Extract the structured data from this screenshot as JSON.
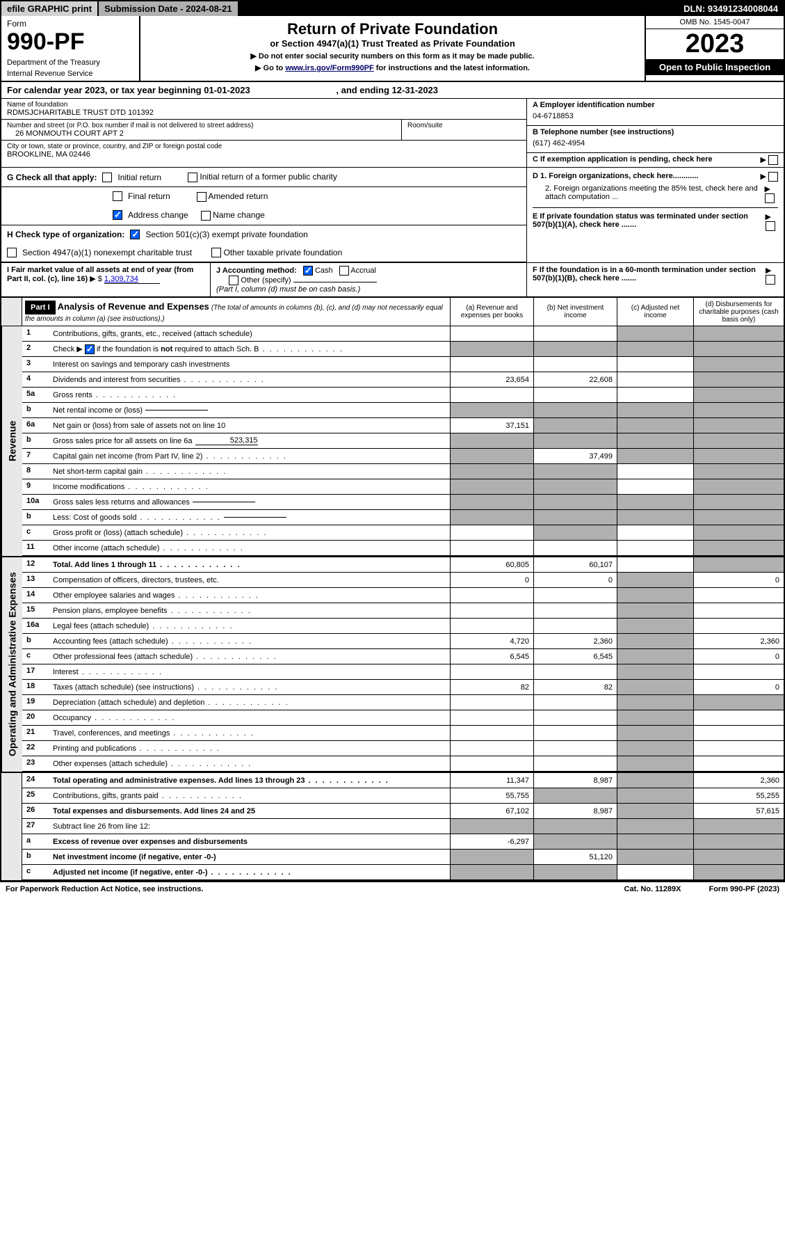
{
  "topbar": {
    "efile": "efile GRAPHIC print",
    "subdate_label": "Submission Date - 2024-08-21",
    "dln": "DLN: 93491234008044"
  },
  "header": {
    "form_label": "Form",
    "form_no": "990-PF",
    "dept": "Department of the Treasury",
    "irs": "Internal Revenue Service",
    "title": "Return of Private Foundation",
    "subtitle": "or Section 4947(a)(1) Trust Treated as Private Foundation",
    "instr1": "▶ Do not enter social security numbers on this form as it may be made public.",
    "instr2_pre": "▶ Go to ",
    "instr2_link": "www.irs.gov/Form990PF",
    "instr2_post": " for instructions and the latest information.",
    "omb": "OMB No. 1545-0047",
    "year": "2023",
    "open": "Open to Public Inspection"
  },
  "calyear": {
    "text": "For calendar year 2023, or tax year beginning 01-01-2023",
    "ending": ", and ending 12-31-2023"
  },
  "foundation": {
    "name_label": "Name of foundation",
    "name": "RDMSJCHARITABLE TRUST DTD 101392",
    "addr_label": "Number and street (or P.O. box number if mail is not delivered to street address)",
    "addr": "26 MONMOUTH COURT APT 2",
    "room_label": "Room/suite",
    "city_label": "City or town, state or province, country, and ZIP or foreign postal code",
    "city": "BROOKLINE, MA  02446",
    "ein_label": "A Employer identification number",
    "ein": "04-6718853",
    "phone_label": "B Telephone number (see instructions)",
    "phone": "(617) 462-4954",
    "c_label": "C If exemption application is pending, check here",
    "d1": "D 1. Foreign organizations, check here............",
    "d2": "2. Foreign organizations meeting the 85% test, check here and attach computation ...",
    "e_label": "E  If private foundation status was terminated under section 507(b)(1)(A), check here .......",
    "f_label": "F  If the foundation is in a 60-month termination under section 507(b)(1)(B), check here .......",
    "g_label": "G Check all that apply:",
    "g_initial": "Initial return",
    "g_initial_former": "Initial return of a former public charity",
    "g_final": "Final return",
    "g_amended": "Amended return",
    "g_address": "Address change",
    "g_name": "Name change",
    "h_label": "H Check type of organization:",
    "h_501c3": "Section 501(c)(3) exempt private foundation",
    "h_4947": "Section 4947(a)(1) nonexempt charitable trust",
    "h_other": "Other taxable private foundation",
    "i_label": "I Fair market value of all assets at end of year (from Part II, col. (c), line 16)",
    "i_value": "1,309,734",
    "j_label": "J Accounting method:",
    "j_cash": "Cash",
    "j_accrual": "Accrual",
    "j_other": "Other (specify)",
    "j_note": "(Part I, column (d) must be on cash basis.)"
  },
  "part1": {
    "label": "Part I",
    "title": "Analysis of Revenue and Expenses",
    "title_note": "(The total of amounts in columns (b), (c), and (d) may not necessarily equal the amounts in column (a) (see instructions).)",
    "col_a": "(a)   Revenue and expenses per books",
    "col_b": "(b)   Net investment income",
    "col_c": "(c)   Adjusted net income",
    "col_d": "(d)   Disbursements for charitable purposes (cash basis only)"
  },
  "sections": {
    "revenue": "Revenue",
    "expenses": "Operating and Administrative Expenses"
  },
  "lines": [
    {
      "no": "1",
      "desc": "Contributions, gifts, grants, etc., received (attach schedule)",
      "a": "",
      "b": "",
      "c": "shaded",
      "d": "shaded"
    },
    {
      "no": "2",
      "desc": "Check ▶ ☑ if the foundation is not required to attach Sch. B",
      "dots": true,
      "a": "shaded",
      "b": "shaded",
      "c": "shaded",
      "d": "shaded",
      "checkbox": true
    },
    {
      "no": "3",
      "desc": "Interest on savings and temporary cash investments",
      "a": "",
      "b": "",
      "c": "",
      "d": "shaded"
    },
    {
      "no": "4",
      "desc": "Dividends and interest from securities",
      "dots": true,
      "a": "23,654",
      "b": "22,608",
      "c": "",
      "d": "shaded"
    },
    {
      "no": "5a",
      "desc": "Gross rents",
      "dots": true,
      "a": "",
      "b": "",
      "c": "",
      "d": "shaded"
    },
    {
      "no": "b",
      "desc": "Net rental income or (loss)",
      "a": "shaded",
      "b": "shaded",
      "c": "shaded",
      "d": "shaded",
      "inline": ""
    },
    {
      "no": "6a",
      "desc": "Net gain or (loss) from sale of assets not on line 10",
      "a": "37,151",
      "b": "shaded",
      "c": "shaded",
      "d": "shaded"
    },
    {
      "no": "b",
      "desc": "Gross sales price for all assets on line 6a",
      "a": "shaded",
      "b": "shaded",
      "c": "shaded",
      "d": "shaded",
      "inline": "523,315"
    },
    {
      "no": "7",
      "desc": "Capital gain net income (from Part IV, line 2)",
      "dots": true,
      "a": "shaded",
      "b": "37,499",
      "c": "shaded",
      "d": "shaded"
    },
    {
      "no": "8",
      "desc": "Net short-term capital gain",
      "dots": true,
      "a": "shaded",
      "b": "shaded",
      "c": "",
      "d": "shaded"
    },
    {
      "no": "9",
      "desc": "Income modifications",
      "dots": true,
      "a": "shaded",
      "b": "shaded",
      "c": "",
      "d": "shaded"
    },
    {
      "no": "10a",
      "desc": "Gross sales less returns and allowances",
      "a": "shaded",
      "b": "shaded",
      "c": "shaded",
      "d": "shaded",
      "inline": ""
    },
    {
      "no": "b",
      "desc": "Less: Cost of goods sold",
      "dots": true,
      "a": "shaded",
      "b": "shaded",
      "c": "shaded",
      "d": "shaded",
      "inline": ""
    },
    {
      "no": "c",
      "desc": "Gross profit or (loss) (attach schedule)",
      "dots": true,
      "a": "",
      "b": "shaded",
      "c": "",
      "d": "shaded"
    },
    {
      "no": "11",
      "desc": "Other income (attach schedule)",
      "dots": true,
      "a": "",
      "b": "",
      "c": "",
      "d": "shaded"
    },
    {
      "no": "12",
      "desc": "Total. Add lines 1 through 11",
      "dots": true,
      "bold": true,
      "a": "60,805",
      "b": "60,107",
      "c": "",
      "d": "shaded"
    },
    {
      "no": "13",
      "desc": "Compensation of officers, directors, trustees, etc.",
      "a": "0",
      "b": "0",
      "c": "shaded",
      "d": "0"
    },
    {
      "no": "14",
      "desc": "Other employee salaries and wages",
      "dots": true,
      "a": "",
      "b": "",
      "c": "shaded",
      "d": ""
    },
    {
      "no": "15",
      "desc": "Pension plans, employee benefits",
      "dots": true,
      "a": "",
      "b": "",
      "c": "shaded",
      "d": ""
    },
    {
      "no": "16a",
      "desc": "Legal fees (attach schedule)",
      "dots": true,
      "a": "",
      "b": "",
      "c": "shaded",
      "d": ""
    },
    {
      "no": "b",
      "desc": "Accounting fees (attach schedule)",
      "dots": true,
      "a": "4,720",
      "b": "2,360",
      "c": "shaded",
      "d": "2,360"
    },
    {
      "no": "c",
      "desc": "Other professional fees (attach schedule)",
      "dots": true,
      "a": "6,545",
      "b": "6,545",
      "c": "shaded",
      "d": "0"
    },
    {
      "no": "17",
      "desc": "Interest",
      "dots": true,
      "a": "",
      "b": "",
      "c": "shaded",
      "d": ""
    },
    {
      "no": "18",
      "desc": "Taxes (attach schedule) (see instructions)",
      "dots": true,
      "a": "82",
      "b": "82",
      "c": "shaded",
      "d": "0"
    },
    {
      "no": "19",
      "desc": "Depreciation (attach schedule) and depletion",
      "dots": true,
      "a": "",
      "b": "",
      "c": "shaded",
      "d": "shaded"
    },
    {
      "no": "20",
      "desc": "Occupancy",
      "dots": true,
      "a": "",
      "b": "",
      "c": "shaded",
      "d": ""
    },
    {
      "no": "21",
      "desc": "Travel, conferences, and meetings",
      "dots": true,
      "a": "",
      "b": "",
      "c": "shaded",
      "d": ""
    },
    {
      "no": "22",
      "desc": "Printing and publications",
      "dots": true,
      "a": "",
      "b": "",
      "c": "shaded",
      "d": ""
    },
    {
      "no": "23",
      "desc": "Other expenses (attach schedule)",
      "dots": true,
      "a": "",
      "b": "",
      "c": "shaded",
      "d": ""
    },
    {
      "no": "24",
      "desc": "Total operating and administrative expenses. Add lines 13 through 23",
      "dots": true,
      "bold": true,
      "a": "11,347",
      "b": "8,987",
      "c": "shaded",
      "d": "2,360"
    },
    {
      "no": "25",
      "desc": "Contributions, gifts, grants paid",
      "dots": true,
      "a": "55,755",
      "b": "shaded",
      "c": "shaded",
      "d": "55,255"
    },
    {
      "no": "26",
      "desc": "Total expenses and disbursements. Add lines 24 and 25",
      "bold": true,
      "a": "67,102",
      "b": "8,987",
      "c": "shaded",
      "d": "57,615"
    },
    {
      "no": "27",
      "desc": "Subtract line 26 from line 12:",
      "a": "shaded",
      "b": "shaded",
      "c": "shaded",
      "d": "shaded"
    },
    {
      "no": "a",
      "desc": "Excess of revenue over expenses and disbursements",
      "bold": true,
      "a": "-6,297",
      "b": "shaded",
      "c": "shaded",
      "d": "shaded"
    },
    {
      "no": "b",
      "desc": "Net investment income (if negative, enter -0-)",
      "bold": true,
      "a": "shaded",
      "b": "51,120",
      "c": "shaded",
      "d": "shaded"
    },
    {
      "no": "c",
      "desc": "Adjusted net income (if negative, enter -0-)",
      "bold": true,
      "dots": true,
      "a": "shaded",
      "b": "shaded",
      "c": "",
      "d": "shaded"
    }
  ],
  "footer": {
    "left": "For Paperwork Reduction Act Notice, see instructions.",
    "mid": "Cat. No. 11289X",
    "right": "Form 990-PF (2023)"
  }
}
